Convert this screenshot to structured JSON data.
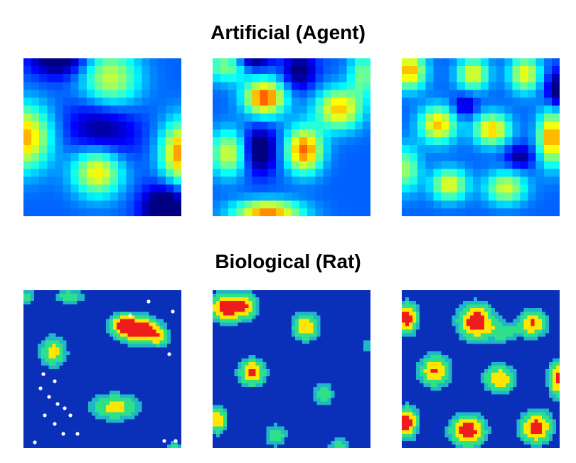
{
  "sections": [
    {
      "title": "Artificial (Agent)",
      "maps": [
        {
          "label": "agent-map-1",
          "fields": [
            [
              0.0,
              0.5,
              0.55,
              0.12,
              0.14,
              0.8
            ],
            [
              0.55,
              0.14,
              0.65,
              0.13,
              0.14,
              0.6
            ],
            [
              0.47,
              0.71,
              0.75,
              0.11,
              0.11,
              0.75
            ],
            [
              1.0,
              0.6,
              0.95,
              0.09,
              0.14,
              0.85
            ],
            [
              0.22,
              0.0,
              0.3,
              0.12,
              0.08,
              -0.5
            ],
            [
              0.9,
              0.95,
              0.3,
              0.1,
              0.1,
              -0.6
            ],
            [
              0.5,
              0.45,
              0.2,
              0.15,
              0.15,
              -0.4
            ]
          ]
        },
        {
          "label": "agent-map-2",
          "fields": [
            [
              0.33,
              0.25,
              1.0,
              0.09,
              0.08,
              0.95
            ],
            [
              0.8,
              0.32,
              0.7,
              0.1,
              0.09,
              0.75
            ],
            [
              0.58,
              0.58,
              0.85,
              0.08,
              0.1,
              0.9
            ],
            [
              0.1,
              0.6,
              0.6,
              0.08,
              0.1,
              0.6
            ],
            [
              0.35,
              0.97,
              0.8,
              0.15,
              0.05,
              0.85
            ],
            [
              0.1,
              0.05,
              0.5,
              0.1,
              0.07,
              0.5
            ],
            [
              0.95,
              0.1,
              0.5,
              0.06,
              0.1,
              0.45
            ],
            [
              0.25,
              0.0,
              0.3,
              0.08,
              0.06,
              -0.5
            ],
            [
              0.55,
              0.08,
              0.2,
              0.07,
              0.08,
              -0.4
            ],
            [
              0.3,
              0.58,
              0.2,
              0.07,
              0.1,
              -0.5
            ]
          ]
        },
        {
          "label": "agent-map-3",
          "fields": [
            [
              0.05,
              0.08,
              0.9,
              0.07,
              0.08,
              0.8
            ],
            [
              0.45,
              0.1,
              0.7,
              0.07,
              0.07,
              0.65
            ],
            [
              0.78,
              0.1,
              0.7,
              0.07,
              0.08,
              0.65
            ],
            [
              0.23,
              0.42,
              0.75,
              0.08,
              0.08,
              0.75
            ],
            [
              0.57,
              0.45,
              0.8,
              0.08,
              0.07,
              0.75
            ],
            [
              0.95,
              0.5,
              0.9,
              0.06,
              0.12,
              0.85
            ],
            [
              0.03,
              0.7,
              0.5,
              0.06,
              0.1,
              0.5
            ],
            [
              0.3,
              0.8,
              0.7,
              0.08,
              0.07,
              0.65
            ],
            [
              0.66,
              0.82,
              0.65,
              0.09,
              0.07,
              0.6
            ],
            [
              1.0,
              0.2,
              0.1,
              0.06,
              0.08,
              -0.5
            ],
            [
              0.4,
              0.3,
              0.1,
              0.05,
              0.05,
              -0.3
            ],
            [
              0.75,
              0.62,
              0.1,
              0.06,
              0.05,
              -0.35
            ]
          ]
        }
      ]
    },
    {
      "title": "Biological (Rat)",
      "maps": [
        {
          "label": "rat-map-1",
          "fields": [
            [
              0.74,
              0.25,
              0.98,
              0.09,
              0.07,
              1.0
            ],
            [
              0.61,
              0.22,
              0.8,
              0.06,
              0.06,
              0.6
            ],
            [
              0.87,
              0.3,
              0.65,
              0.05,
              0.05,
              0.5
            ],
            [
              0.19,
              0.39,
              0.7,
              0.07,
              0.08,
              0.7
            ],
            [
              0.58,
              0.74,
              0.65,
              0.13,
              0.07,
              0.7
            ],
            [
              0.29,
              0.04,
              0.6,
              0.08,
              0.04,
              0.55
            ],
            [
              0.02,
              0.04,
              0.45,
              0.05,
              0.04,
              0.5
            ],
            [
              0.96,
              0.99,
              0.5,
              0.05,
              0.03,
              0.45
            ]
          ]
        },
        {
          "label": "rat-map-2",
          "fields": [
            [
              0.08,
              0.11,
              0.95,
              0.08,
              0.07,
              0.95
            ],
            [
              0.22,
              0.1,
              0.5,
              0.06,
              0.07,
              0.6
            ],
            [
              0.59,
              0.23,
              0.8,
              0.07,
              0.07,
              0.8
            ],
            [
              0.25,
              0.52,
              0.85,
              0.07,
              0.07,
              0.85
            ],
            [
              0.7,
              0.66,
              0.6,
              0.06,
              0.06,
              0.55
            ],
            [
              0.03,
              0.82,
              0.85,
              0.05,
              0.07,
              0.8
            ],
            [
              0.4,
              0.92,
              0.6,
              0.06,
              0.06,
              0.55
            ],
            [
              0.8,
              0.98,
              0.55,
              0.06,
              0.04,
              0.5
            ],
            [
              0.98,
              0.35,
              0.45,
              0.03,
              0.05,
              0.4
            ]
          ]
        },
        {
          "label": "rat-map-3",
          "fields": [
            [
              0.03,
              0.18,
              1.0,
              0.06,
              0.08,
              0.95
            ],
            [
              0.47,
              0.2,
              1.0,
              0.09,
              0.09,
              1.0
            ],
            [
              0.83,
              0.21,
              0.85,
              0.07,
              0.07,
              0.85
            ],
            [
              0.21,
              0.51,
              0.9,
              0.08,
              0.08,
              0.85
            ],
            [
              0.62,
              0.56,
              0.82,
              0.08,
              0.07,
              0.8
            ],
            [
              0.99,
              0.56,
              0.95,
              0.05,
              0.09,
              0.9
            ],
            [
              0.03,
              0.84,
              1.0,
              0.06,
              0.08,
              0.95
            ],
            [
              0.42,
              0.89,
              1.0,
              0.09,
              0.08,
              0.95
            ],
            [
              0.85,
              0.87,
              1.0,
              0.08,
              0.08,
              0.95
            ],
            [
              0.65,
              0.27,
              0.5,
              0.06,
              0.05,
              0.45
            ]
          ]
        }
      ]
    }
  ]
}
